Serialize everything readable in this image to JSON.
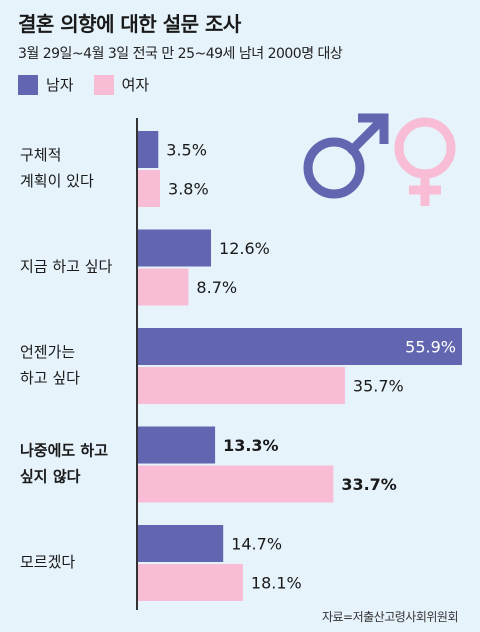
{
  "colors": {
    "male": "#6266b0",
    "female": "#f9bcd5",
    "background": "#e6f3fb",
    "axis": "#333333"
  },
  "legend": {
    "male": "남자",
    "female": "여자"
  },
  "source": "자료=저출산고령사회위원회",
  "chart_data": {
    "type": "bar",
    "orientation": "horizontal",
    "title": "결혼 의향에 대한 설문 조사",
    "subtitle": "3월 29일~4월 3일 전국 만 25~49세 남녀 2000명 대상",
    "categories": [
      [
        "구체적",
        "계획이 있다"
      ],
      [
        "지금 하고 싶다"
      ],
      [
        "언젠가는",
        "하고 싶다"
      ],
      [
        "나중에도 하고",
        "싶지 않다"
      ],
      [
        "모르겠다"
      ]
    ],
    "highlighted_category_index": 3,
    "value_labels": {
      "male": [
        "3.5%",
        "12.6%",
        "55.9%",
        "13.3%",
        "14.7%"
      ],
      "female": [
        "3.8%",
        "8.7%",
        "35.7%",
        "33.7%",
        "18.1%"
      ]
    },
    "series": [
      {
        "name": "남자",
        "values": [
          3.5,
          12.6,
          55.9,
          13.3,
          14.7
        ]
      },
      {
        "name": "여자",
        "values": [
          3.8,
          8.7,
          35.7,
          33.7,
          18.1
        ]
      }
    ],
    "xlim": [
      0,
      55.9
    ],
    "unit": "%"
  }
}
